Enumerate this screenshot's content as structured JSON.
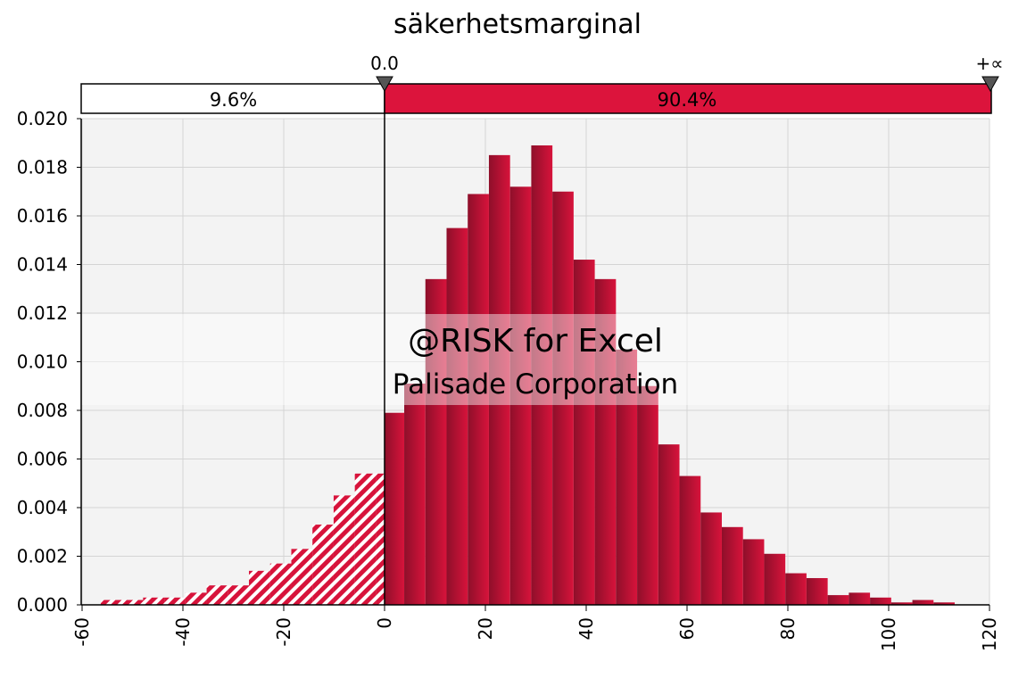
{
  "colors": {
    "bar": "#d7133b",
    "bar_dark": "#8e0f2a",
    "band_right": "#dc143c",
    "band_left": "#ffffff",
    "plot_bg": "#f3f3f3",
    "grid": "#d4d4d4"
  },
  "chart_data": {
    "type": "bar",
    "title": "säkerhetsmarginal",
    "xlim": [
      -60,
      120
    ],
    "ylim": [
      0,
      0.02
    ],
    "x_ticks": [
      "-60",
      "-40",
      "-20",
      "0",
      "20",
      "40",
      "60",
      "80",
      "100",
      "120"
    ],
    "y_ticks": [
      "0.000",
      "0.002",
      "0.004",
      "0.006",
      "0.008",
      "0.010",
      "0.012",
      "0.014",
      "0.016",
      "0.018",
      "0.020"
    ],
    "bin_width": 4.2,
    "bin_starts": [
      -56.3,
      -52.1,
      -47.9,
      -43.7,
      -39.5,
      -35.3,
      -31.1,
      -26.9,
      -22.7,
      -18.5,
      -14.3,
      -10.1,
      -5.9,
      -1.7,
      0,
      3.9,
      8.1,
      12.3,
      16.5,
      20.7,
      24.9,
      29.1,
      33.3,
      37.5,
      41.7,
      45.9,
      50.1,
      54.3,
      58.5,
      62.7,
      66.9,
      71.1,
      75.3,
      79.5,
      83.7,
      87.9,
      92.1,
      96.3,
      100.5,
      104.7,
      108.9,
      113.1
    ],
    "bin_ends": [
      -52.1,
      -47.9,
      -43.7,
      -39.5,
      -35.3,
      -31.1,
      -26.9,
      -22.7,
      -18.5,
      -14.3,
      -10.1,
      -5.9,
      -1.7,
      0,
      3.9,
      8.1,
      12.3,
      16.5,
      20.7,
      24.9,
      29.1,
      33.3,
      37.5,
      41.7,
      45.9,
      50.1,
      54.3,
      58.5,
      62.7,
      66.9,
      71.1,
      75.3,
      79.5,
      83.7,
      87.9,
      92.1,
      96.3,
      100.5,
      104.7,
      108.9,
      113.1,
      117.3
    ],
    "values": [
      0.0002,
      0.0002,
      0.0003,
      0.0003,
      0.0005,
      0.0008,
      0.0008,
      0.0014,
      0.0017,
      0.0023,
      0.0033,
      0.0045,
      0.0054,
      0.0054,
      0.0079,
      0.0091,
      0.0134,
      0.0155,
      0.0169,
      0.0185,
      0.0172,
      0.0189,
      0.017,
      0.0142,
      0.0134,
      0.0105,
      0.009,
      0.0066,
      0.0053,
      0.0038,
      0.0032,
      0.0027,
      0.0021,
      0.0013,
      0.0011,
      0.0004,
      0.0005,
      0.0003,
      0.0001,
      0.0002,
      0.0001,
      0.0
    ],
    "delimiters": {
      "left_label": "0.0",
      "right_label": "+∝",
      "left_value": 0.0,
      "left_percent": "9.6%",
      "right_percent": "90.4%"
    },
    "watermark": {
      "line1": "@RISK for Excel",
      "line2": "Palisade Corporation"
    },
    "grid": true
  }
}
